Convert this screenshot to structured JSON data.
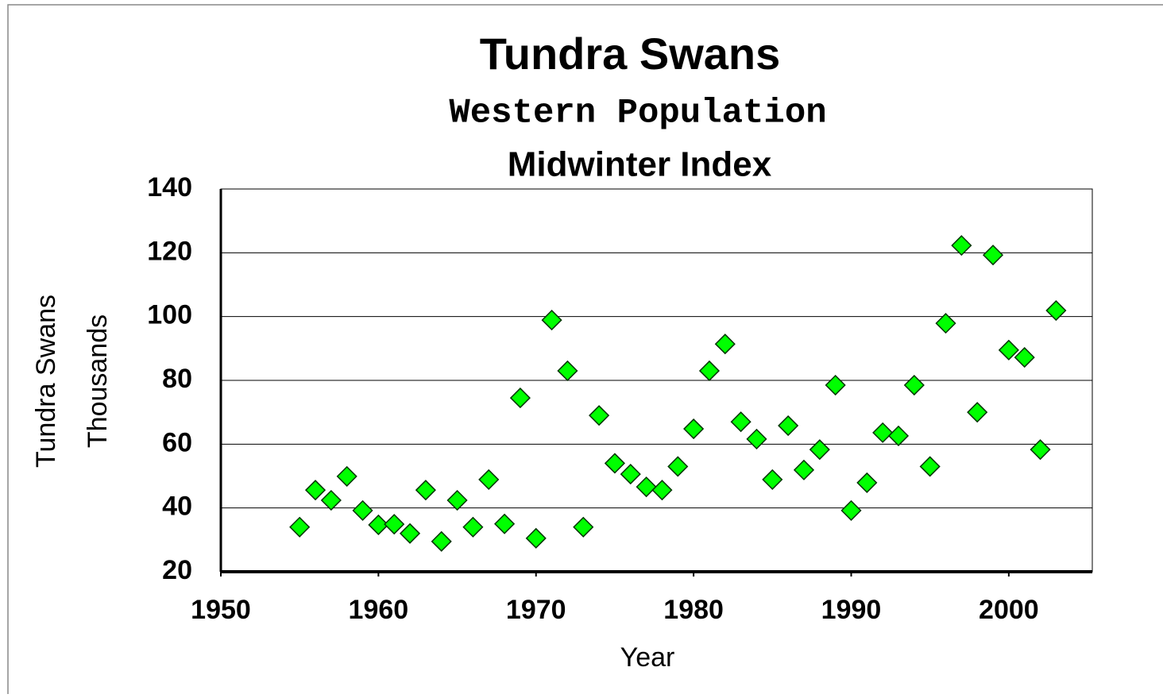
{
  "chart_data": {
    "type": "scatter",
    "title": "Tundra Swans",
    "subtitle": "Western Population",
    "subtitle2": "Midwinter Index",
    "xlabel": "Year",
    "ylabel": [
      "Tundra Swans",
      "Thousands"
    ],
    "x": [
      1955,
      1956,
      1957,
      1958,
      1959,
      1960,
      1961,
      1962,
      1963,
      1964,
      1965,
      1966,
      1967,
      1968,
      1969,
      1970,
      1971,
      1972,
      1973,
      1974,
      1975,
      1976,
      1977,
      1978,
      1979,
      1980,
      1981,
      1982,
      1983,
      1984,
      1985,
      1986,
      1987,
      1988,
      1989,
      1990,
      1991,
      1992,
      1993,
      1994,
      1995,
      1996,
      1997,
      1998,
      1999,
      2000,
      2001,
      2002,
      2003
    ],
    "values": [
      34,
      45.6,
      42.4,
      49.9,
      39.2,
      34.7,
      34.9,
      32,
      45.6,
      29.5,
      42.4,
      34,
      48.9,
      35,
      74.5,
      30.5,
      98.9,
      83,
      34,
      69,
      54,
      50.6,
      46.6,
      45.6,
      53,
      64.8,
      83,
      91.4,
      67,
      61.6,
      48.9,
      65.8,
      51.9,
      58.3,
      78.5,
      39.2,
      47.9,
      63.6,
      62.6,
      78.5,
      53,
      97.9,
      122.3,
      70,
      119.3,
      89.5,
      87.2,
      58.3,
      101.9
    ],
    "color": "#00ff00",
    "xlim": [
      1950,
      2005.3
    ],
    "xticks": [
      1950,
      1960,
      1970,
      1980,
      1990,
      2000
    ],
    "ylim": [
      20,
      140
    ],
    "yticks": [
      20,
      40,
      60,
      80,
      100,
      120,
      140
    ],
    "grid": true
  }
}
